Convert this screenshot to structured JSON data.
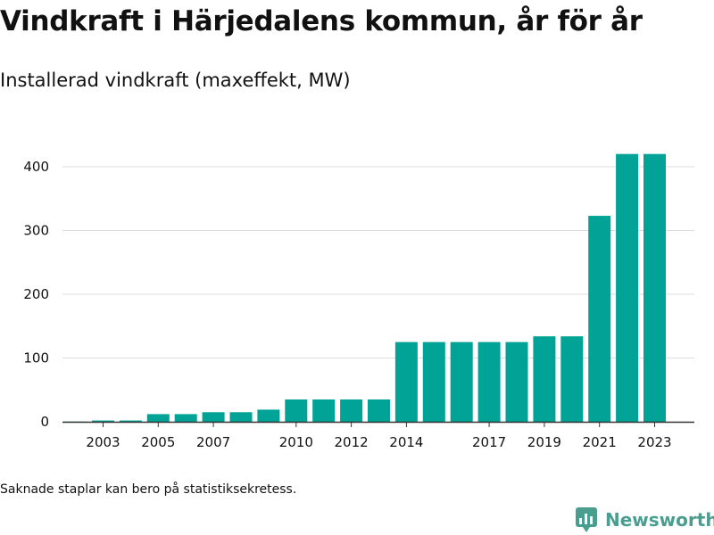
{
  "title": "Vindkraft i Härjedalens kommun, år för år",
  "subtitle": "Installerad vindkraft (maxeffekt, MW)",
  "footnote": "Saknade staplar kan bero på statistiksekretess.",
  "brand": {
    "name": "Newsworthy",
    "icon": "newsworthy-logo-icon",
    "color": "#4a9e90"
  },
  "chart_data": {
    "type": "bar",
    "title": "",
    "xlabel": "",
    "ylabel": "",
    "bar_color": "#00a396",
    "grid": true,
    "ylim": [
      0,
      430
    ],
    "yticks": [
      0,
      100,
      200,
      300,
      400
    ],
    "xticks": [
      2003,
      2005,
      2007,
      2010,
      2012,
      2014,
      2017,
      2019,
      2021,
      2023
    ],
    "categories": [
      2002,
      2003,
      2004,
      2005,
      2006,
      2007,
      2008,
      2009,
      2010,
      2011,
      2012,
      2013,
      2014,
      2015,
      2016,
      2017,
      2018,
      2019,
      2020,
      2021,
      2022,
      2023
    ],
    "values": [
      0.3,
      2,
      2,
      12,
      12,
      15,
      15,
      19,
      35,
      35,
      35,
      35,
      125,
      125,
      125,
      125,
      125,
      134,
      134,
      323,
      420,
      420
    ]
  }
}
